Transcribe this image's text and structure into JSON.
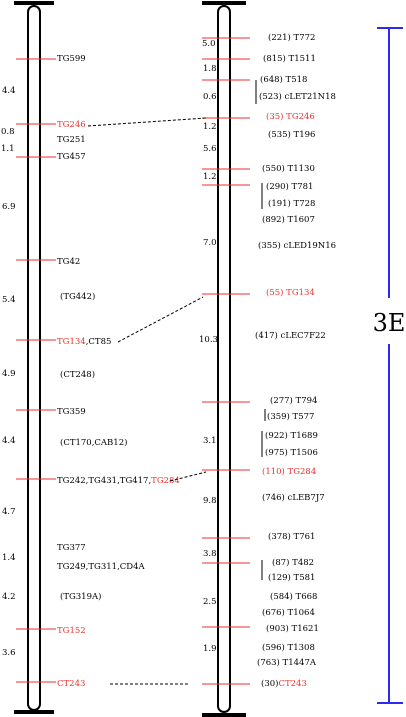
{
  "colors": {
    "black": "#000000",
    "red": "#e8332f",
    "blue": "#2a2af0"
  },
  "left_map": {
    "marker_color": "#e8332f",
    "intervals": [
      {
        "text": "4.4"
      },
      {
        "text": "0.8"
      },
      {
        "text": "1.1"
      },
      {
        "text": "6.9"
      },
      {
        "text": "5.4"
      },
      {
        "text": "4.9"
      },
      {
        "text": "4.4"
      },
      {
        "text": "4.7"
      },
      {
        "text": "1.4"
      },
      {
        "text": "4.2"
      },
      {
        "text": "3.6"
      }
    ],
    "loci": [
      {
        "parts": [
          {
            "text": "TG599"
          }
        ]
      },
      {
        "parts": [
          {
            "text": "TG246",
            "red": true
          }
        ]
      },
      {
        "parts": [
          {
            "text": "TG251"
          }
        ]
      },
      {
        "parts": [
          {
            "text": "TG457"
          }
        ]
      },
      {
        "parts": [
          {
            "text": "TG42"
          }
        ]
      },
      {
        "parts": [
          {
            "text": "(TG442)"
          }
        ]
      },
      {
        "parts": [
          {
            "text": "TG134",
            "red": true
          },
          {
            "text": ",CT85"
          }
        ]
      },
      {
        "parts": [
          {
            "text": "(CT248)"
          }
        ]
      },
      {
        "parts": [
          {
            "text": "TG359"
          }
        ]
      },
      {
        "parts": [
          {
            "text": "(CT170,CAB12)"
          }
        ]
      },
      {
        "parts": [
          {
            "text": "TG242,TG431,TG417,"
          },
          {
            "text": "TG284",
            "red": true
          }
        ]
      },
      {
        "parts": [
          {
            "text": "TG377"
          }
        ]
      },
      {
        "parts": [
          {
            "text": "TG249,TG311,CD4A"
          }
        ]
      },
      {
        "parts": [
          {
            "text": "(TG319A)"
          }
        ]
      },
      {
        "parts": [
          {
            "text": "TG152",
            "red": true
          }
        ]
      },
      {
        "parts": [
          {
            "text": "CT243",
            "red": true
          }
        ]
      }
    ]
  },
  "right_map": {
    "intervals": [
      {
        "text": "5.0"
      },
      {
        "text": "1.8"
      },
      {
        "text": "0.6"
      },
      {
        "text": "1.2"
      },
      {
        "text": "5.6"
      },
      {
        "text": "1.2"
      },
      {
        "text": "7.0"
      },
      {
        "text": "10.3"
      },
      {
        "text": "3.1"
      },
      {
        "text": "9.8"
      },
      {
        "text": "3.8"
      },
      {
        "text": "2.5"
      },
      {
        "text": "1.9"
      }
    ],
    "loci": [
      {
        "parts": [
          {
            "text": "(221) T772"
          }
        ]
      },
      {
        "parts": [
          {
            "text": "(815) T1511"
          }
        ]
      },
      {
        "parts": [
          {
            "text": "(648) T518"
          }
        ]
      },
      {
        "parts": [
          {
            "text": "(523) cLET21N18"
          }
        ]
      },
      {
        "parts": [
          {
            "text": "(35) TG246",
            "red": true
          }
        ]
      },
      {
        "parts": [
          {
            "text": "(535) T196"
          }
        ]
      },
      {
        "parts": [
          {
            "text": "(550) T1130"
          }
        ]
      },
      {
        "parts": [
          {
            "text": "(290) T781"
          }
        ]
      },
      {
        "parts": [
          {
            "text": "(191) T728"
          }
        ]
      },
      {
        "parts": [
          {
            "text": "(892) T1607"
          }
        ]
      },
      {
        "parts": [
          {
            "text": "(355) cLED19N16"
          }
        ]
      },
      {
        "parts": [
          {
            "text": "(55) TG134",
            "red": true
          }
        ]
      },
      {
        "parts": [
          {
            "text": "(417) cLEC7F22"
          }
        ]
      },
      {
        "parts": [
          {
            "text": "(277) T794"
          }
        ]
      },
      {
        "parts": [
          {
            "text": "(359) T577"
          }
        ]
      },
      {
        "parts": [
          {
            "text": "(922) T1689"
          }
        ]
      },
      {
        "parts": [
          {
            "text": "(975) T1506"
          }
        ]
      },
      {
        "parts": [
          {
            "text": "(110) TG284",
            "red": true
          }
        ]
      },
      {
        "parts": [
          {
            "text": "(746) cLEB7J7"
          }
        ]
      },
      {
        "parts": [
          {
            "text": "(378) T761"
          }
        ]
      },
      {
        "parts": [
          {
            "text": "(87) T482"
          }
        ]
      },
      {
        "parts": [
          {
            "text": "(129) T581"
          }
        ]
      },
      {
        "parts": [
          {
            "text": "(584) T668"
          }
        ]
      },
      {
        "parts": [
          {
            "text": "(676) T1064"
          }
        ]
      },
      {
        "parts": [
          {
            "text": "(903) T1621"
          }
        ]
      },
      {
        "parts": [
          {
            "text": "(596) T1308"
          }
        ]
      },
      {
        "parts": [
          {
            "text": "(763) T1447A"
          }
        ]
      },
      {
        "parts": [
          {
            "text": "(30)"
          },
          {
            "text": "CT243",
            "red": true
          }
        ]
      }
    ]
  },
  "region_label": "3E"
}
